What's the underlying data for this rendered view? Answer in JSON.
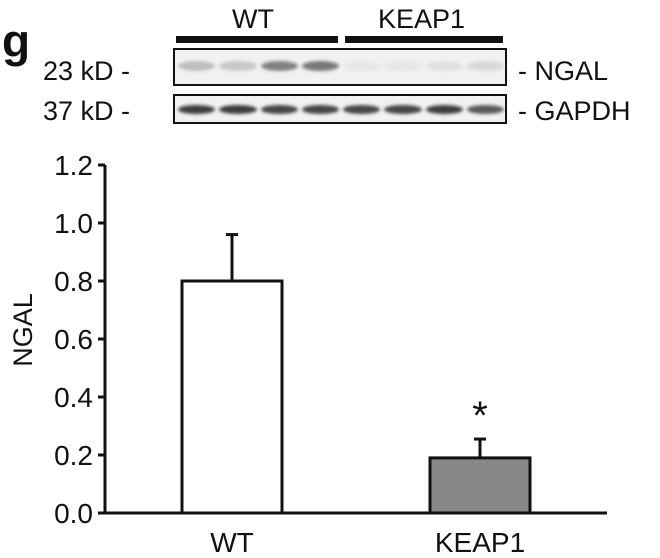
{
  "panel_label": "g",
  "blot": {
    "groups": [
      {
        "label": "WT",
        "lanes": 4
      },
      {
        "label": "KEAP1",
        "lanes": 4
      }
    ],
    "rows": [
      {
        "marker": "23 kD -",
        "protein": "- NGAL",
        "band_intensity": [
          0.25,
          0.2,
          0.55,
          0.6,
          0.05,
          0.05,
          0.08,
          0.12
        ]
      },
      {
        "marker": "37 kD -",
        "protein": "- GAPDH",
        "band_intensity": [
          0.9,
          0.9,
          0.85,
          0.85,
          0.85,
          0.85,
          0.9,
          0.75
        ]
      }
    ]
  },
  "chart_data": {
    "type": "bar",
    "title": "",
    "xlabel": "",
    "ylabel": "NGAL",
    "categories": [
      "WT",
      "KEAP1"
    ],
    "values": [
      0.8,
      0.19
    ],
    "error_upper": [
      0.96,
      0.255
    ],
    "bar_colors": [
      "#ffffff",
      "#888888"
    ],
    "annotations": [
      {
        "category": "KEAP1",
        "text": "*"
      }
    ],
    "ylim": [
      0.0,
      1.2
    ],
    "yticks": [
      "0.0",
      "0.2",
      "0.4",
      "0.6",
      "0.8",
      "1.0",
      "1.2"
    ],
    "grid": false,
    "legend": null
  }
}
